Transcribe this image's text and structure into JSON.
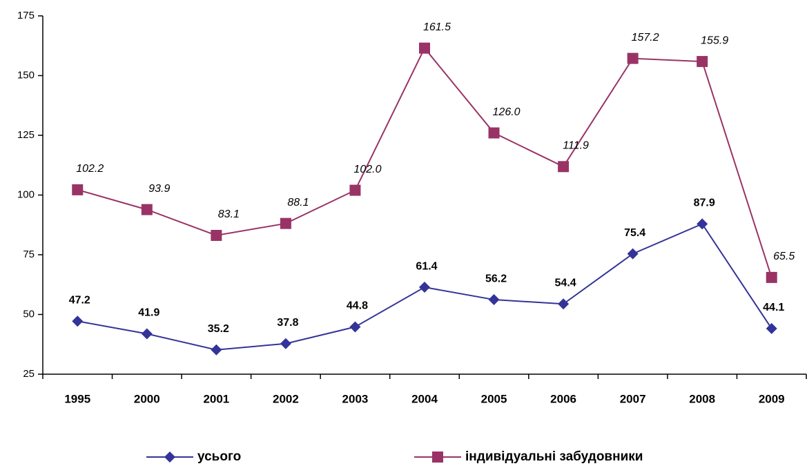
{
  "chart_data": {
    "type": "line",
    "categories": [
      "1995",
      "2000",
      "2001",
      "2002",
      "2003",
      "2004",
      "2005",
      "2006",
      "2007",
      "2008",
      "2009"
    ],
    "series": [
      {
        "name": "усього",
        "color": "#333399",
        "marker": "diamond",
        "values": [
          47.2,
          41.9,
          35.2,
          37.8,
          44.8,
          61.4,
          56.2,
          54.4,
          75.4,
          87.9,
          44.1
        ],
        "value_labels": [
          "47.2",
          "41.9",
          "35.2",
          "37.8",
          "44.8",
          "61.4",
          "56.2",
          "54.4",
          "75.4",
          "87.9",
          "44.1"
        ]
      },
      {
        "name": "індивідуальні забудовники",
        "color": "#993366",
        "marker": "square",
        "values": [
          102.2,
          93.9,
          83.1,
          88.1,
          102.0,
          161.5,
          126.0,
          111.9,
          157.2,
          155.9,
          65.5
        ],
        "value_labels": [
          "102.2",
          "93.9",
          "83.1",
          "88.1",
          "102.0",
          "161.5",
          "126.0",
          "111.9",
          "157.2",
          "155.9",
          "65.5"
        ]
      }
    ],
    "ylim": [
      25,
      175
    ],
    "yticks": [
      25,
      50,
      75,
      100,
      125,
      150,
      175
    ],
    "grid": false,
    "legend": "bottom"
  }
}
